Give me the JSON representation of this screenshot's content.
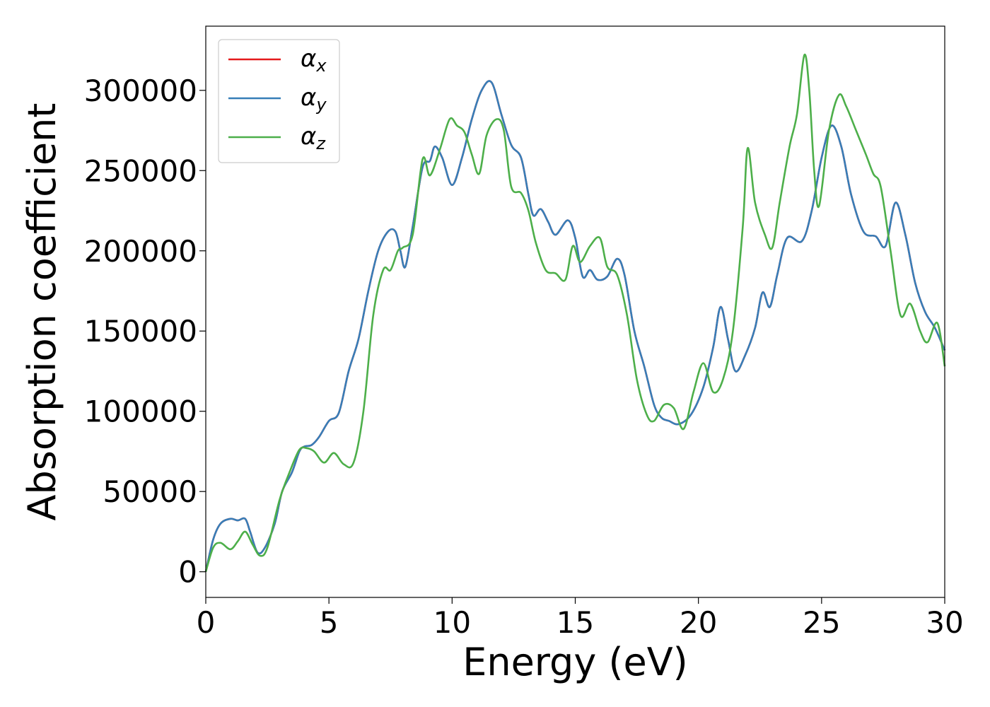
{
  "chart_data": {
    "type": "line",
    "title": "",
    "xlabel": "Energy (eV)",
    "ylabel": "Absorption coefficient",
    "xlim": [
      0,
      30
    ],
    "ylim": [
      -16000,
      340000
    ],
    "xticks": [
      0,
      5,
      10,
      15,
      20,
      25,
      30
    ],
    "yticks": [
      0,
      50000,
      100000,
      150000,
      200000,
      250000,
      300000
    ],
    "grid": false,
    "legend_position": "top-left",
    "series": [
      {
        "name": "α_x",
        "base": "α",
        "sub": "x",
        "color": "#e41a1c",
        "points": [
          [
            0,
            0
          ],
          [
            0.3,
            20000
          ],
          [
            0.6,
            30000
          ],
          [
            1,
            33000
          ],
          [
            1.3,
            32000
          ],
          [
            1.6,
            33000
          ],
          [
            1.8,
            25000
          ],
          [
            2.1,
            12000
          ],
          [
            2.4,
            15000
          ],
          [
            2.8,
            30000
          ],
          [
            3.1,
            50000
          ],
          [
            3.5,
            62000
          ],
          [
            3.8,
            75000
          ],
          [
            4,
            78000
          ],
          [
            4.3,
            79000
          ],
          [
            4.6,
            84000
          ],
          [
            5,
            94000
          ],
          [
            5.4,
            99000
          ],
          [
            5.8,
            125000
          ],
          [
            6.2,
            145000
          ],
          [
            6.6,
            175000
          ],
          [
            7,
            200000
          ],
          [
            7.4,
            212000
          ],
          [
            7.7,
            212000
          ],
          [
            7.9,
            200000
          ],
          [
            8.1,
            190000
          ],
          [
            8.4,
            215000
          ],
          [
            8.8,
            252000
          ],
          [
            9.1,
            256000
          ],
          [
            9.3,
            265000
          ],
          [
            9.6,
            258000
          ],
          [
            10,
            241000
          ],
          [
            10.4,
            258000
          ],
          [
            10.8,
            282000
          ],
          [
            11.2,
            300000
          ],
          [
            11.6,
            305000
          ],
          [
            12,
            285000
          ],
          [
            12.4,
            266000
          ],
          [
            12.8,
            258000
          ],
          [
            13.1,
            235000
          ],
          [
            13.3,
            222000
          ],
          [
            13.6,
            226000
          ],
          [
            13.9,
            218000
          ],
          [
            14.2,
            210000
          ],
          [
            14.7,
            219000
          ],
          [
            15,
            208000
          ],
          [
            15.3,
            184000
          ],
          [
            15.6,
            188000
          ],
          [
            15.9,
            182000
          ],
          [
            16.3,
            184000
          ],
          [
            16.7,
            195000
          ],
          [
            17,
            185000
          ],
          [
            17.4,
            150000
          ],
          [
            17.8,
            128000
          ],
          [
            18.2,
            104000
          ],
          [
            18.5,
            96000
          ],
          [
            18.8,
            94000
          ],
          [
            19.2,
            92000
          ],
          [
            19.7,
            98000
          ],
          [
            20.2,
            115000
          ],
          [
            20.6,
            140000
          ],
          [
            20.9,
            165000
          ],
          [
            21.2,
            145000
          ],
          [
            21.5,
            125000
          ],
          [
            21.9,
            135000
          ],
          [
            22.3,
            152000
          ],
          [
            22.6,
            174000
          ],
          [
            22.9,
            165000
          ],
          [
            23.2,
            185000
          ],
          [
            23.6,
            208000
          ],
          [
            24.2,
            206000
          ],
          [
            24.6,
            225000
          ],
          [
            25,
            258000
          ],
          [
            25.4,
            278000
          ],
          [
            25.8,
            265000
          ],
          [
            26.2,
            235000
          ],
          [
            26.7,
            212000
          ],
          [
            27.2,
            209000
          ],
          [
            27.6,
            203000
          ],
          [
            28,
            230000
          ],
          [
            28.4,
            210000
          ],
          [
            28.8,
            180000
          ],
          [
            29.2,
            162000
          ],
          [
            29.6,
            152000
          ],
          [
            30,
            138000
          ]
        ]
      },
      {
        "name": "α_y",
        "base": "α",
        "sub": "y",
        "color": "#377eb8",
        "points": [
          [
            0,
            0
          ],
          [
            0.3,
            20000
          ],
          [
            0.6,
            30000
          ],
          [
            1,
            33000
          ],
          [
            1.3,
            32000
          ],
          [
            1.6,
            33000
          ],
          [
            1.8,
            25000
          ],
          [
            2.1,
            12000
          ],
          [
            2.4,
            15000
          ],
          [
            2.8,
            30000
          ],
          [
            3.1,
            50000
          ],
          [
            3.5,
            62000
          ],
          [
            3.8,
            75000
          ],
          [
            4,
            78000
          ],
          [
            4.3,
            79000
          ],
          [
            4.6,
            84000
          ],
          [
            5,
            94000
          ],
          [
            5.4,
            99000
          ],
          [
            5.8,
            125000
          ],
          [
            6.2,
            145000
          ],
          [
            6.6,
            175000
          ],
          [
            7,
            200000
          ],
          [
            7.4,
            212000
          ],
          [
            7.7,
            212000
          ],
          [
            7.9,
            200000
          ],
          [
            8.1,
            190000
          ],
          [
            8.4,
            215000
          ],
          [
            8.8,
            252000
          ],
          [
            9.1,
            256000
          ],
          [
            9.3,
            265000
          ],
          [
            9.6,
            258000
          ],
          [
            10,
            241000
          ],
          [
            10.4,
            258000
          ],
          [
            10.8,
            282000
          ],
          [
            11.2,
            300000
          ],
          [
            11.6,
            305000
          ],
          [
            12,
            285000
          ],
          [
            12.4,
            266000
          ],
          [
            12.8,
            258000
          ],
          [
            13.1,
            235000
          ],
          [
            13.3,
            222000
          ],
          [
            13.6,
            226000
          ],
          [
            13.9,
            218000
          ],
          [
            14.2,
            210000
          ],
          [
            14.7,
            219000
          ],
          [
            15,
            208000
          ],
          [
            15.3,
            184000
          ],
          [
            15.6,
            188000
          ],
          [
            15.9,
            182000
          ],
          [
            16.3,
            184000
          ],
          [
            16.7,
            195000
          ],
          [
            17,
            185000
          ],
          [
            17.4,
            150000
          ],
          [
            17.8,
            128000
          ],
          [
            18.2,
            104000
          ],
          [
            18.5,
            96000
          ],
          [
            18.8,
            94000
          ],
          [
            19.2,
            92000
          ],
          [
            19.7,
            98000
          ],
          [
            20.2,
            115000
          ],
          [
            20.6,
            140000
          ],
          [
            20.9,
            165000
          ],
          [
            21.2,
            145000
          ],
          [
            21.5,
            125000
          ],
          [
            21.9,
            135000
          ],
          [
            22.3,
            152000
          ],
          [
            22.6,
            174000
          ],
          [
            22.9,
            165000
          ],
          [
            23.2,
            185000
          ],
          [
            23.6,
            208000
          ],
          [
            24.2,
            206000
          ],
          [
            24.6,
            225000
          ],
          [
            25,
            258000
          ],
          [
            25.4,
            278000
          ],
          [
            25.8,
            265000
          ],
          [
            26.2,
            235000
          ],
          [
            26.7,
            212000
          ],
          [
            27.2,
            209000
          ],
          [
            27.6,
            203000
          ],
          [
            28,
            230000
          ],
          [
            28.4,
            210000
          ],
          [
            28.8,
            180000
          ],
          [
            29.2,
            162000
          ],
          [
            29.6,
            152000
          ],
          [
            30,
            138000
          ]
        ]
      },
      {
        "name": "α_z",
        "base": "α",
        "sub": "z",
        "color": "#4daf4a",
        "points": [
          [
            0,
            0
          ],
          [
            0.3,
            15000
          ],
          [
            0.6,
            18000
          ],
          [
            1,
            14000
          ],
          [
            1.3,
            19000
          ],
          [
            1.6,
            25000
          ],
          [
            1.9,
            17000
          ],
          [
            2.2,
            10000
          ],
          [
            2.5,
            15000
          ],
          [
            3,
            45000
          ],
          [
            3.4,
            62000
          ],
          [
            3.8,
            76000
          ],
          [
            4.1,
            77000
          ],
          [
            4.4,
            75000
          ],
          [
            4.8,
            68000
          ],
          [
            5.2,
            74000
          ],
          [
            5.6,
            67000
          ],
          [
            6,
            68000
          ],
          [
            6.4,
            100000
          ],
          [
            6.8,
            160000
          ],
          [
            7.2,
            188000
          ],
          [
            7.5,
            188000
          ],
          [
            7.8,
            200000
          ],
          [
            8,
            202000
          ],
          [
            8.4,
            210000
          ],
          [
            8.8,
            257000
          ],
          [
            9.1,
            247000
          ],
          [
            9.5,
            263000
          ],
          [
            9.9,
            282000
          ],
          [
            10.2,
            278000
          ],
          [
            10.5,
            274000
          ],
          [
            10.8,
            260000
          ],
          [
            11.1,
            248000
          ],
          [
            11.4,
            272000
          ],
          [
            11.8,
            282000
          ],
          [
            12.1,
            275000
          ],
          [
            12.4,
            240000
          ],
          [
            12.8,
            236000
          ],
          [
            13.1,
            225000
          ],
          [
            13.4,
            205000
          ],
          [
            13.8,
            188000
          ],
          [
            14.2,
            186000
          ],
          [
            14.6,
            182000
          ],
          [
            14.9,
            203000
          ],
          [
            15.2,
            193000
          ],
          [
            15.6,
            203000
          ],
          [
            16,
            208000
          ],
          [
            16.3,
            190000
          ],
          [
            16.7,
            185000
          ],
          [
            17.1,
            160000
          ],
          [
            17.5,
            120000
          ],
          [
            17.9,
            98000
          ],
          [
            18.2,
            94000
          ],
          [
            18.6,
            104000
          ],
          [
            19,
            102000
          ],
          [
            19.4,
            89000
          ],
          [
            19.8,
            112000
          ],
          [
            20.2,
            130000
          ],
          [
            20.6,
            112000
          ],
          [
            21,
            120000
          ],
          [
            21.4,
            150000
          ],
          [
            21.8,
            215000
          ],
          [
            22,
            264000
          ],
          [
            22.3,
            230000
          ],
          [
            22.7,
            210000
          ],
          [
            23,
            202000
          ],
          [
            23.3,
            230000
          ],
          [
            23.7,
            265000
          ],
          [
            24,
            285000
          ],
          [
            24.3,
            322000
          ],
          [
            24.5,
            300000
          ],
          [
            24.7,
            250000
          ],
          [
            24.9,
            228000
          ],
          [
            25.3,
            275000
          ],
          [
            25.7,
            297000
          ],
          [
            26,
            290000
          ],
          [
            26.4,
            275000
          ],
          [
            26.8,
            260000
          ],
          [
            27.1,
            248000
          ],
          [
            27.4,
            240000
          ],
          [
            27.8,
            200000
          ],
          [
            28.2,
            160000
          ],
          [
            28.6,
            167000
          ],
          [
            29,
            150000
          ],
          [
            29.3,
            143000
          ],
          [
            29.7,
            155000
          ],
          [
            30,
            128000
          ]
        ]
      }
    ]
  }
}
